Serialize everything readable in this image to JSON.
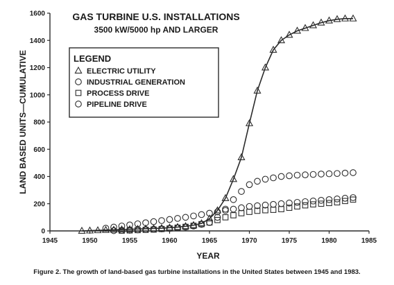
{
  "chart_data": {
    "type": "line",
    "title": "GAS TURBINE U.S. INSTALLATIONS",
    "subtitle": "3500 kW/5000 hp AND LARGER",
    "xlabel": "YEAR",
    "ylabel": "LAND BASED UNITS—CUMULATIVE",
    "xlim": [
      1945,
      1985
    ],
    "ylim": [
      0,
      1600
    ],
    "xticks": [
      1945,
      1950,
      1955,
      1960,
      1965,
      1970,
      1975,
      1980,
      1985
    ],
    "yticks": [
      0,
      200,
      400,
      600,
      800,
      1000,
      1200,
      1400,
      1600
    ],
    "grid": false,
    "legend_title": "LEGEND",
    "legend_position": "top-left",
    "x": [
      1949,
      1950,
      1951,
      1952,
      1953,
      1954,
      1955,
      1956,
      1957,
      1958,
      1959,
      1960,
      1961,
      1962,
      1963,
      1964,
      1965,
      1966,
      1967,
      1968,
      1969,
      1970,
      1971,
      1972,
      1973,
      1974,
      1975,
      1976,
      1977,
      1978,
      1979,
      1980,
      1981,
      1982,
      1983
    ],
    "series": [
      {
        "name": "ELECTRIC UTILITY",
        "marker": "triangle",
        "values": [
          0,
          2,
          4,
          6,
          8,
          10,
          12,
          14,
          16,
          18,
          20,
          24,
          28,
          34,
          42,
          55,
          90,
          150,
          240,
          380,
          540,
          790,
          1030,
          1200,
          1330,
          1400,
          1440,
          1470,
          1490,
          1510,
          1530,
          1545,
          1555,
          1560,
          1560
        ]
      },
      {
        "name": "INDUSTRIAL GENERATION",
        "marker": "circle",
        "values": [
          null,
          null,
          null,
          null,
          2,
          4,
          6,
          8,
          10,
          12,
          15,
          18,
          22,
          28,
          36,
          48,
          62,
          100,
          160,
          230,
          290,
          340,
          365,
          380,
          390,
          400,
          405,
          410,
          412,
          415,
          418,
          420,
          422,
          425,
          428
        ]
      },
      {
        "name": "PROCESS DRIVE",
        "marker": "square",
        "values": [
          null,
          null,
          null,
          null,
          null,
          2,
          4,
          6,
          8,
          10,
          14,
          18,
          24,
          30,
          38,
          50,
          62,
          80,
          100,
          115,
          130,
          140,
          148,
          152,
          155,
          160,
          170,
          180,
          188,
          195,
          200,
          205,
          210,
          220,
          230
        ]
      },
      {
        "name": "PIPELINE DRIVE",
        "marker": "circle",
        "values": [
          null,
          null,
          null,
          20,
          28,
          36,
          44,
          52,
          60,
          68,
          76,
          84,
          92,
          100,
          110,
          120,
          130,
          140,
          150,
          160,
          170,
          180,
          185,
          190,
          195,
          200,
          205,
          210,
          215,
          220,
          225,
          230,
          235,
          240,
          245
        ]
      }
    ]
  },
  "caption": "Figure 2. The growth of land-based gas turbine installations in the United States between 1945 and 1983."
}
